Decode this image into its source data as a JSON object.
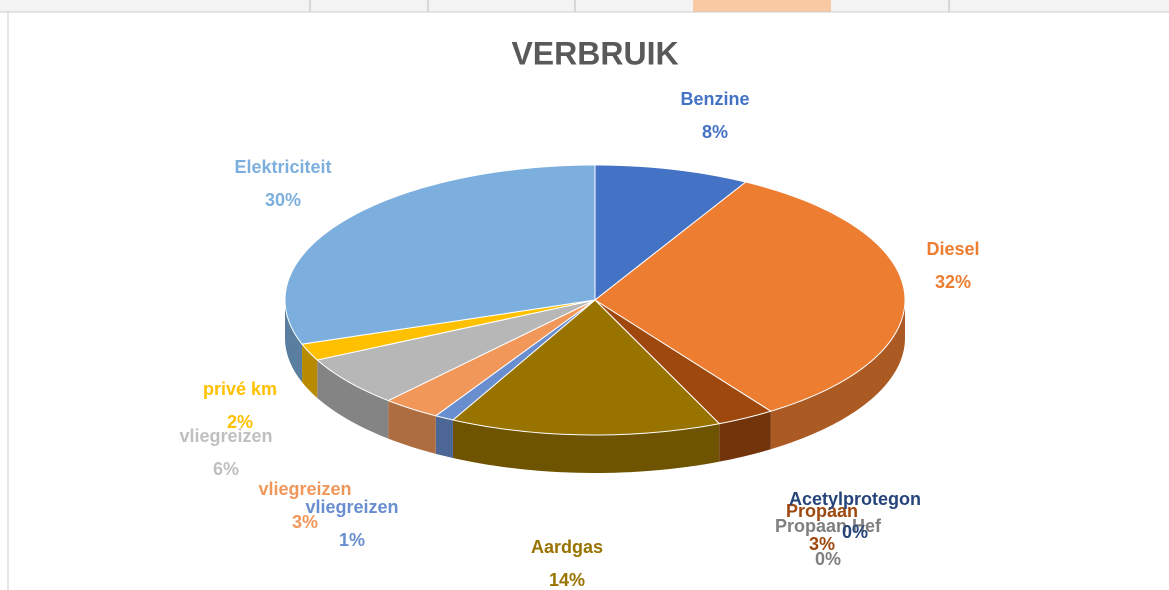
{
  "chart_data": {
    "type": "pie",
    "title": "VERBRUIK",
    "categories": [
      "Benzine",
      "Diesel",
      "Propaan",
      "Propaan Hef",
      "Acetylprotegon",
      "Aardgas",
      "vliegreizen",
      "vliegreizen",
      "vliegreizen",
      "privé km",
      "Elektriciteit"
    ],
    "values": [
      8,
      32,
      3,
      0,
      0,
      14,
      1,
      3,
      6,
      2,
      30
    ],
    "value_labels": [
      "8%",
      "32%",
      "3%",
      "0%",
      "0%",
      "14%",
      "1%",
      "3%",
      "6%",
      "2%",
      "30%"
    ],
    "colors": [
      "#4472c4",
      "#ed7d31",
      "#9e480e",
      "#8c8c8c",
      "#264478",
      "#997300",
      "#698ed0",
      "#f1975a",
      "#b7b7b7",
      "#ffc000",
      "#7cafdd"
    ]
  }
}
